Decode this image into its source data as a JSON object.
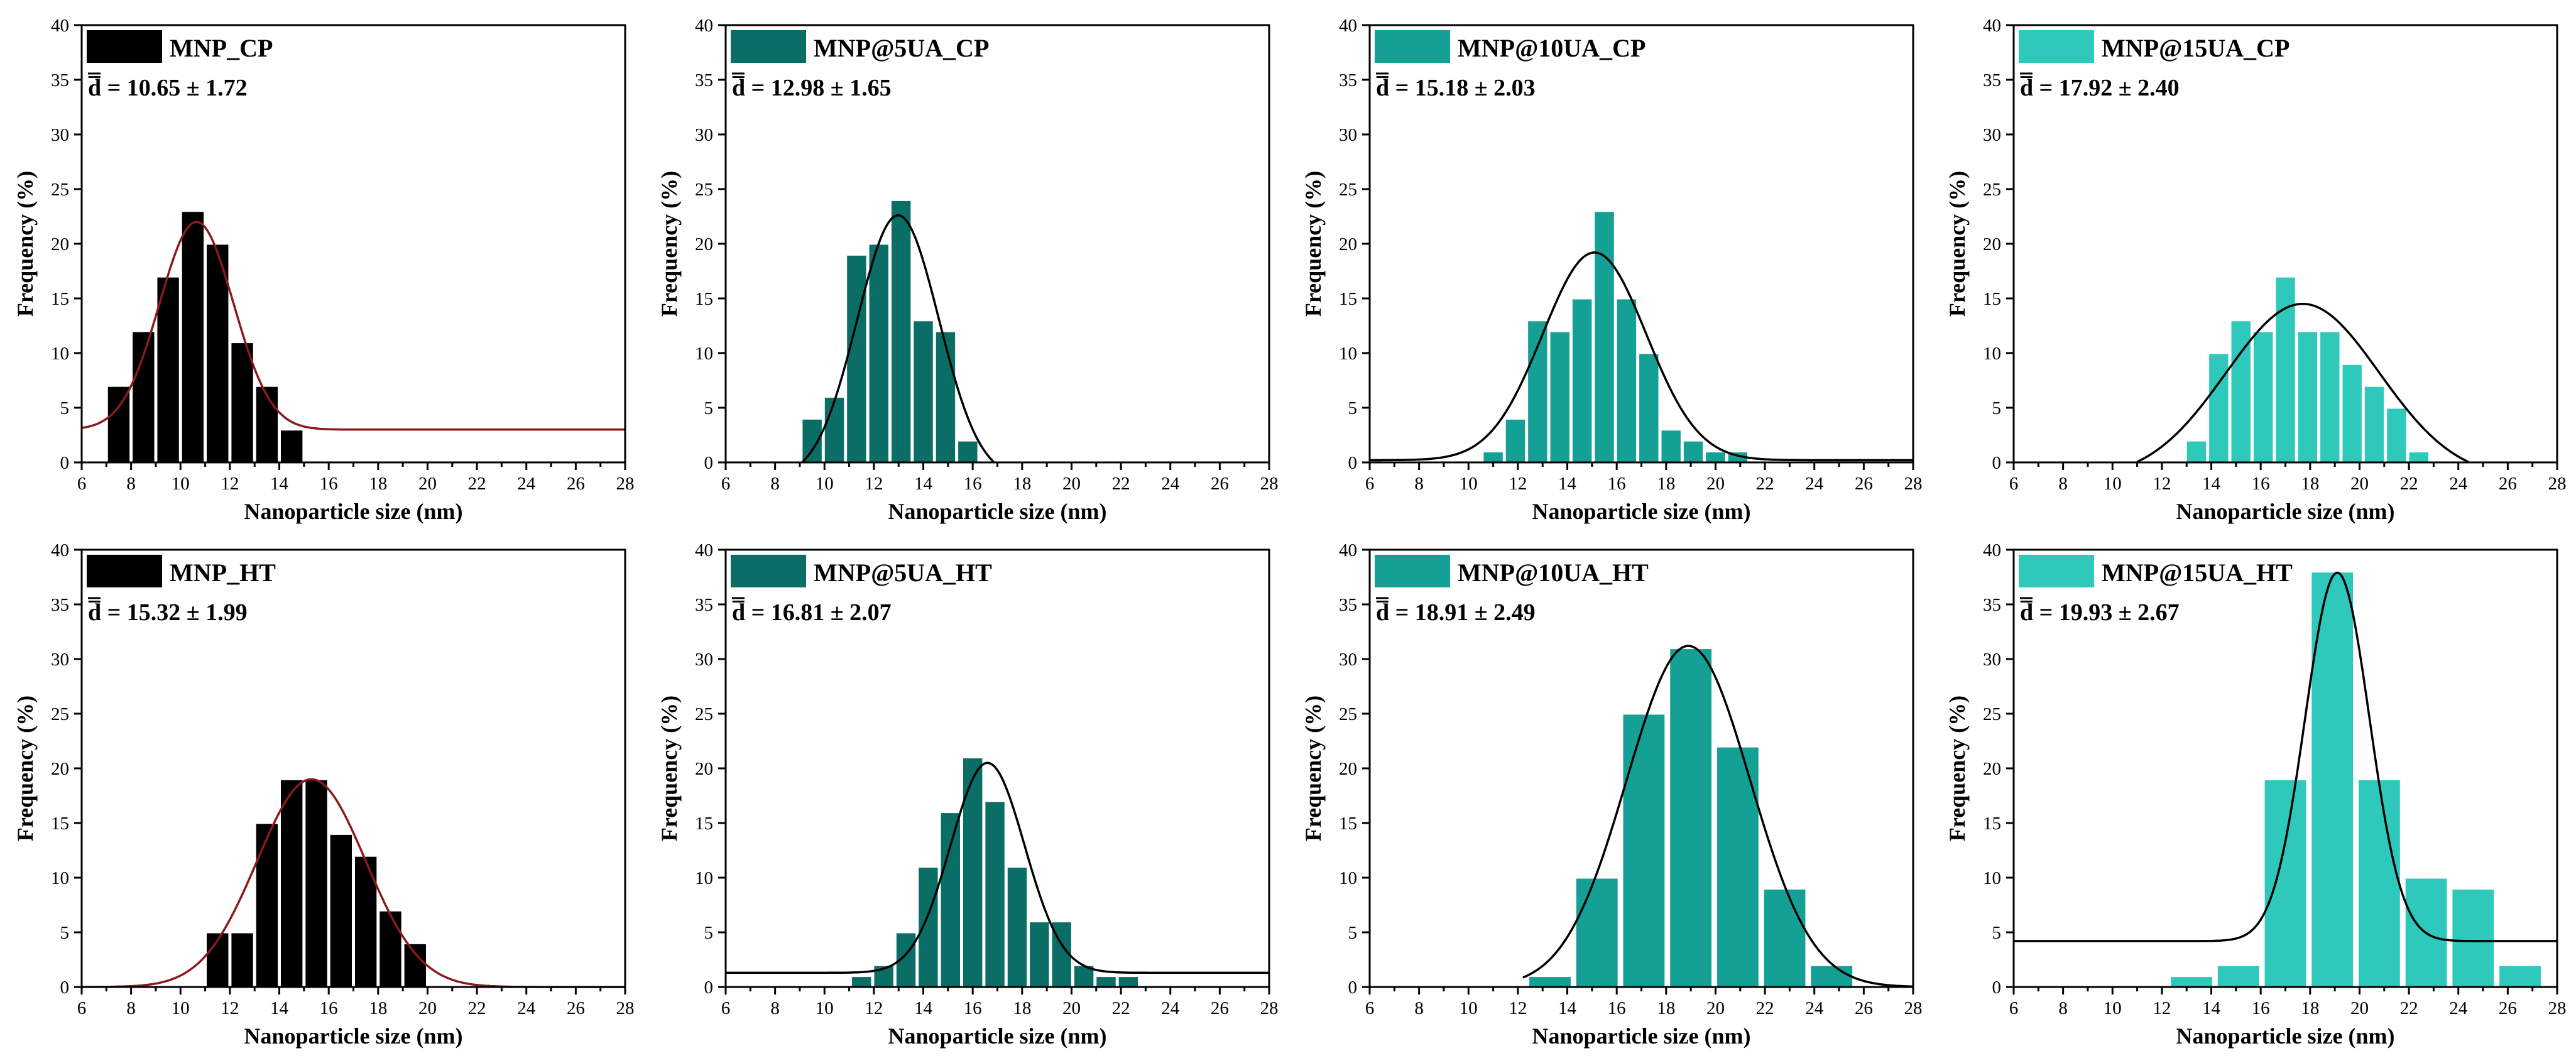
{
  "figure": {
    "type": "histogram-grid",
    "rows": 2,
    "cols": 4
  },
  "chart_data": [
    {
      "type": "bar",
      "title": "MNP_CP",
      "stat_label": "d̅ = 10.65 ± 1.72",
      "color": "#000000",
      "fit_color": "#8b1a1a",
      "xlabel": "Nanoparticle size (nm)",
      "ylabel": "Frequency (%)",
      "xlim": [
        6,
        28
      ],
      "ylim": [
        0,
        40
      ],
      "xticks": [
        6,
        8,
        10,
        12,
        14,
        16,
        18,
        20,
        22,
        24,
        26,
        28
      ],
      "yticks": [
        0,
        5,
        10,
        15,
        20,
        25,
        30,
        35,
        40
      ],
      "bin_width": 0.95,
      "centers": [
        7.5,
        8.5,
        9.5,
        10.5,
        11.5,
        12.5,
        13.5,
        14.5
      ],
      "values": [
        7,
        12,
        17,
        23,
        20,
        11,
        7,
        3
      ],
      "fit": {
        "model": "gauss",
        "mean": 10.65,
        "sd": 1.5,
        "amplitude": 19,
        "baseline": 3,
        "x_start": 6
      }
    },
    {
      "type": "bar",
      "title": "MNP@5UA_CP",
      "stat_label": "d̅ = 12.98 ± 1.65",
      "color": "#0b6e66",
      "fit_color": "#000000",
      "xlabel": "Nanoparticle size (nm)",
      "ylabel": "Frequency (%)",
      "xlim": [
        6,
        28
      ],
      "ylim": [
        0,
        40
      ],
      "xticks": [
        6,
        8,
        10,
        12,
        14,
        16,
        18,
        20,
        22,
        24,
        26,
        28
      ],
      "yticks": [
        0,
        5,
        10,
        15,
        20,
        25,
        30,
        35,
        40
      ],
      "bin_width": 0.85,
      "centers": [
        9.5,
        10.4,
        11.3,
        12.2,
        13.1,
        14.0,
        14.9,
        15.8
      ],
      "values": [
        4,
        6,
        19,
        20,
        24,
        13,
        12,
        2
      ],
      "fit": {
        "model": "gauss",
        "mean": 12.98,
        "sd": 1.65,
        "amplitude": 24.1,
        "baseline": -1.5,
        "x_start": 6
      }
    },
    {
      "type": "bar",
      "title": "MNP@10UA_CP",
      "stat_label": "d̅ = 15.18 ± 2.03",
      "color": "#14a094",
      "fit_color": "#000000",
      "xlabel": "Nanoparticle size (nm)",
      "ylabel": "Frequency (%)",
      "xlim": [
        6,
        28
      ],
      "ylim": [
        0,
        40
      ],
      "xticks": [
        6,
        8,
        10,
        12,
        14,
        16,
        18,
        20,
        22,
        24,
        26,
        28
      ],
      "yticks": [
        0,
        5,
        10,
        15,
        20,
        25,
        30,
        35,
        40
      ],
      "bin_width": 0.85,
      "centers": [
        11.0,
        11.9,
        12.8,
        13.7,
        14.6,
        15.5,
        16.4,
        17.3,
        18.2,
        19.1,
        20.0,
        20.9
      ],
      "values": [
        1,
        4,
        13,
        12,
        15,
        23,
        15,
        10,
        3,
        2,
        1,
        1
      ],
      "fit": {
        "model": "gauss",
        "mean": 15.1,
        "sd": 2.1,
        "amplitude": 19.0,
        "baseline": 0.2,
        "x_start": 6
      }
    },
    {
      "type": "bar",
      "title": "MNP@15UA_CP",
      "stat_label": "d̅ = 17.92 ± 2.40",
      "color": "#2ec9bb",
      "fit_color": "#000000",
      "xlabel": "Nanoparticle size (nm)",
      "ylabel": "Frequency (%)",
      "xlim": [
        6,
        28
      ],
      "ylim": [
        0,
        40
      ],
      "xticks": [
        6,
        8,
        10,
        12,
        14,
        16,
        18,
        20,
        22,
        24,
        26,
        28
      ],
      "yticks": [
        0,
        5,
        10,
        15,
        20,
        25,
        30,
        35,
        40
      ],
      "bin_width": 0.85,
      "centers": [
        13.4,
        14.3,
        15.2,
        16.1,
        17.0,
        17.9,
        18.8,
        19.7,
        20.6,
        21.5,
        22.4,
        23.3
      ],
      "values": [
        2,
        10,
        13,
        12,
        17,
        12,
        12,
        9,
        7,
        5,
        1,
        0
      ],
      "fit": {
        "model": "gauss",
        "mean": 17.7,
        "sd": 3.1,
        "amplitude": 16.0,
        "baseline": -1.5,
        "x_start": 6
      }
    },
    {
      "type": "bar",
      "title": "MNP_HT",
      "stat_label": "d̅ = 15.32 ± 1.99",
      "color": "#000000",
      "fit_color": "#8b1a1a",
      "xlabel": "Nanoparticle size (nm)",
      "ylabel": "Frequency (%)",
      "xlim": [
        6,
        28
      ],
      "ylim": [
        0,
        40
      ],
      "xticks": [
        6,
        8,
        10,
        12,
        14,
        16,
        18,
        20,
        22,
        24,
        26,
        28
      ],
      "yticks": [
        0,
        5,
        10,
        15,
        20,
        25,
        30,
        35,
        40
      ],
      "bin_width": 0.95,
      "centers": [
        11.5,
        12.5,
        13.5,
        14.5,
        15.5,
        16.5,
        17.5,
        18.5,
        19.5
      ],
      "values": [
        5,
        5,
        15,
        19,
        19,
        14,
        12,
        7,
        4
      ],
      "fit": {
        "model": "gauss",
        "mean": 15.3,
        "sd": 2.2,
        "amplitude": 19.0,
        "baseline": 0,
        "x_start": 6
      }
    },
    {
      "type": "bar",
      "title": "MNP@5UA_HT",
      "stat_label": "d̅ = 16.81 ± 2.07",
      "color": "#0b6e66",
      "fit_color": "#000000",
      "xlabel": "Nanoparticle size (nm)",
      "ylabel": "Frequency (%)",
      "xlim": [
        6,
        28
      ],
      "ylim": [
        0,
        40
      ],
      "xticks": [
        6,
        8,
        10,
        12,
        14,
        16,
        18,
        20,
        22,
        24,
        26,
        28
      ],
      "yticks": [
        0,
        5,
        10,
        15,
        20,
        25,
        30,
        35,
        40
      ],
      "bin_width": 0.85,
      "centers": [
        11.5,
        12.4,
        13.3,
        14.2,
        15.1,
        16.0,
        16.9,
        17.8,
        18.7,
        19.6,
        20.5,
        21.4,
        22.3
      ],
      "values": [
        1,
        2,
        5,
        11,
        16,
        21,
        17,
        11,
        6,
        6,
        2,
        1,
        1
      ],
      "fit": {
        "model": "gauss",
        "mean": 16.6,
        "sd": 1.5,
        "amplitude": 19.2,
        "baseline": 1.3,
        "x_start": 6
      }
    },
    {
      "type": "bar",
      "title": "MNP@10UA_HT",
      "stat_label": "d̅ = 18.91 ± 2.49",
      "color": "#14a094",
      "fit_color": "#000000",
      "xlabel": "Nanoparticle size (nm)",
      "ylabel": "Frequency (%)",
      "xlim": [
        6,
        28
      ],
      "ylim": [
        0,
        40
      ],
      "xticks": [
        6,
        8,
        10,
        12,
        14,
        16,
        18,
        20,
        22,
        24,
        26,
        28
      ],
      "yticks": [
        0,
        5,
        10,
        15,
        20,
        25,
        30,
        35,
        40
      ],
      "bin_width": 1.75,
      "centers": [
        13.3,
        15.2,
        17.1,
        19.0,
        20.9,
        22.8,
        24.7
      ],
      "values": [
        1,
        10,
        25,
        31,
        22,
        9,
        2
      ],
      "fit": {
        "model": "gauss",
        "mean": 18.9,
        "sd": 2.5,
        "amplitude": 31.2,
        "baseline": 0,
        "x_start": 12.2
      }
    },
    {
      "type": "bar",
      "title": "MNP@15UA_HT",
      "stat_label": "d̅ = 19.93 ± 2.67",
      "color": "#2ec9bb",
      "fit_color": "#000000",
      "xlabel": "Nanoparticle size (nm)",
      "ylabel": "Frequency (%)",
      "xlim": [
        6,
        28
      ],
      "ylim": [
        0,
        40
      ],
      "xticks": [
        6,
        8,
        10,
        12,
        14,
        16,
        18,
        20,
        22,
        24,
        26,
        28
      ],
      "yticks": [
        0,
        5,
        10,
        15,
        20,
        25,
        30,
        35,
        40
      ],
      "bin_width": 1.75,
      "centers": [
        13.2,
        15.1,
        17.0,
        18.9,
        20.8,
        22.7,
        24.6,
        26.5
      ],
      "values": [
        1,
        2,
        19,
        38,
        19,
        10,
        9,
        2
      ],
      "fit": {
        "model": "gauss",
        "mean": 19.1,
        "sd": 1.3,
        "amplitude": 33.7,
        "baseline": 4.2,
        "x_start": 6
      }
    }
  ]
}
